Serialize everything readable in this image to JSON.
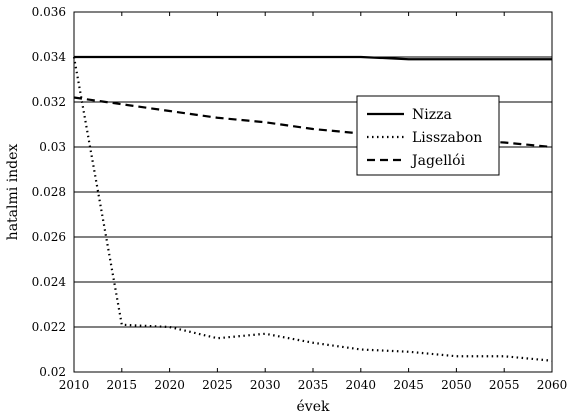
{
  "chart_data": {
    "type": "line",
    "title": "",
    "xlabel": "évek",
    "ylabel": "hatalmi index",
    "xlim": [
      2010,
      2060
    ],
    "ylim": [
      0.02,
      0.036
    ],
    "xticks": [
      2010,
      2015,
      2020,
      2025,
      2030,
      2035,
      2040,
      2045,
      2050,
      2055,
      2060
    ],
    "xtick_labels": [
      "2010",
      "2015",
      "2020",
      "2025",
      "2030",
      "2035",
      "2040",
      "2045",
      "2050",
      "2055",
      "2060"
    ],
    "yticks": [
      0.02,
      0.022,
      0.024,
      0.026,
      0.028,
      0.03,
      0.032,
      0.034,
      0.036
    ],
    "ytick_labels": [
      "0.02",
      "0.022",
      "0.024",
      "0.026",
      "0.028",
      "0.03",
      "0.032",
      "0.034",
      "0.036"
    ],
    "grid": "horizontal",
    "legend_position": "center-right",
    "x": [
      2010,
      2015,
      2020,
      2025,
      2030,
      2035,
      2040,
      2045,
      2050,
      2055,
      2060
    ],
    "series": [
      {
        "name": "Nizza",
        "style": "solid",
        "values": [
          0.034,
          0.034,
          0.034,
          0.034,
          0.034,
          0.034,
          0.034,
          0.0339,
          0.0339,
          0.0339,
          0.0339
        ]
      },
      {
        "name": "Lisszabon",
        "style": "dotted",
        "values": [
          0.034,
          0.0221,
          0.022,
          0.0215,
          0.0217,
          0.0213,
          0.021,
          0.0209,
          0.0207,
          0.0207,
          0.0205
        ]
      },
      {
        "name": "Jagellói",
        "style": "dashed",
        "values": [
          0.0322,
          0.0319,
          0.0316,
          0.0313,
          0.0311,
          0.0308,
          0.0306,
          0.0304,
          0.0303,
          0.0302,
          0.03
        ]
      }
    ]
  }
}
